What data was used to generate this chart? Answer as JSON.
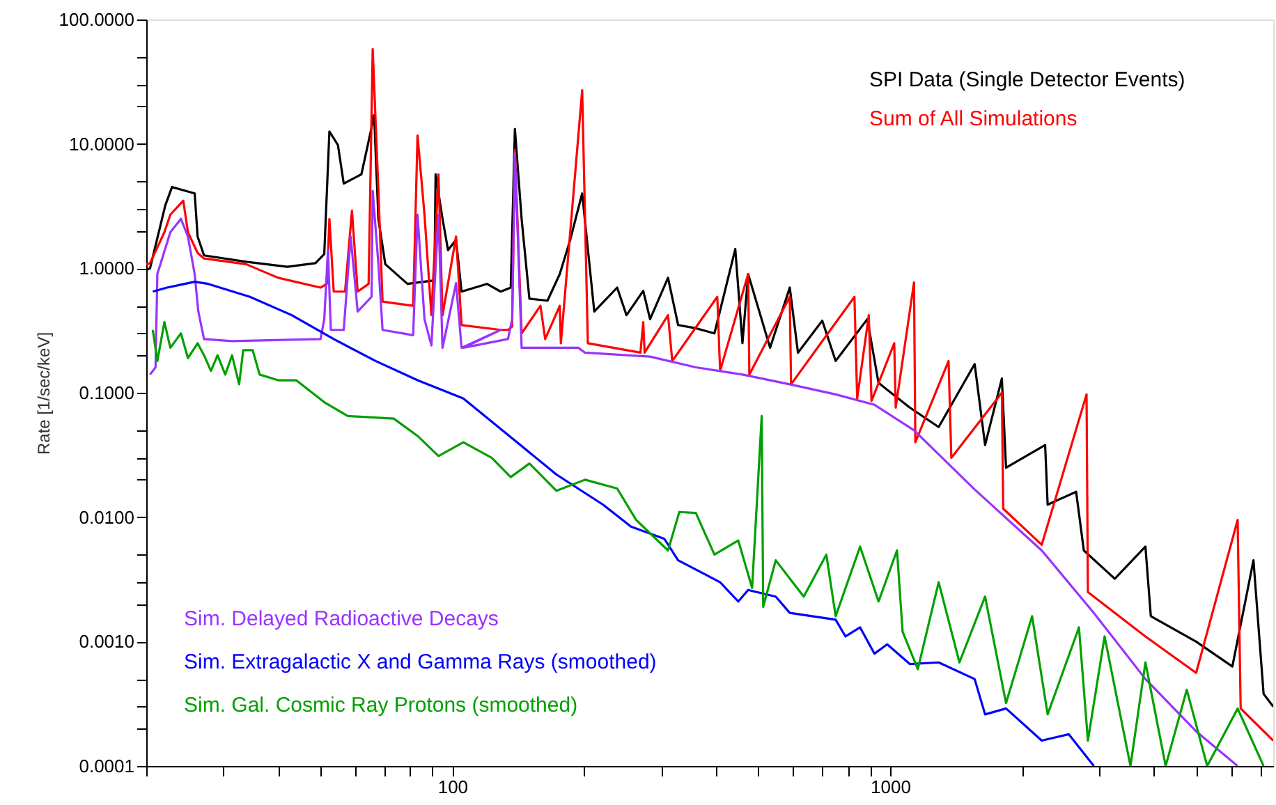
{
  "chart_data": {
    "type": "line",
    "ylabel": "Rate [1/sec/keV]",
    "log": "xy",
    "grid": false,
    "marker": "none",
    "line_style": "solid",
    "xlim": [
      20,
      7500
    ],
    "ylim": [
      0.0001,
      100
    ],
    "xticks": [
      {
        "value": 20,
        "label": null
      },
      {
        "value": 30,
        "label": null
      },
      {
        "value": 40,
        "label": null
      },
      {
        "value": 50,
        "label": null
      },
      {
        "value": 60,
        "label": null
      },
      {
        "value": 70,
        "label": null
      },
      {
        "value": 80,
        "label": null
      },
      {
        "value": 90,
        "label": null
      },
      100,
      {
        "value": 200,
        "label": null
      },
      {
        "value": 300,
        "label": null
      },
      {
        "value": 400,
        "label": null
      },
      {
        "value": 500,
        "label": null
      },
      {
        "value": 600,
        "label": null
      },
      {
        "value": 700,
        "label": null
      },
      {
        "value": 800,
        "label": null
      },
      {
        "value": 900,
        "label": null
      },
      1000,
      {
        "value": 2000,
        "label": null
      },
      {
        "value": 3000,
        "label": null
      },
      {
        "value": 4000,
        "label": null
      },
      {
        "value": 5000,
        "label": null
      },
      {
        "value": 6000,
        "label": null
      },
      {
        "value": 7000,
        "label": null
      }
    ],
    "yticks": [
      {
        "value": 0.0001,
        "label": "0.0001"
      },
      {
        "value": 0.0002,
        "label": null
      },
      {
        "value": 0.0003,
        "label": null
      },
      {
        "value": 0.0005,
        "label": null
      },
      {
        "value": 0.001,
        "label": "0.0010"
      },
      {
        "value": 0.002,
        "label": null
      },
      {
        "value": 0.003,
        "label": null
      },
      {
        "value": 0.005,
        "label": null
      },
      {
        "value": 0.01,
        "label": "0.0100"
      },
      {
        "value": 0.02,
        "label": null
      },
      {
        "value": 0.03,
        "label": null
      },
      {
        "value": 0.05,
        "label": null
      },
      {
        "value": 0.1,
        "label": "0.1000"
      },
      {
        "value": 0.2,
        "label": null
      },
      {
        "value": 0.3,
        "label": null
      },
      {
        "value": 0.5,
        "label": null
      },
      {
        "value": 1,
        "label": "1.0000"
      },
      {
        "value": 2,
        "label": null
      },
      {
        "value": 3,
        "label": null
      },
      {
        "value": 5,
        "label": null
      },
      {
        "value": 10,
        "label": "10.0000"
      },
      {
        "value": 20,
        "label": null
      },
      {
        "value": 30,
        "label": null
      },
      {
        "value": 50,
        "label": null
      },
      {
        "value": 100,
        "label": "100.0000"
      }
    ],
    "series": [
      {
        "name": "SPI Data (Single Detector Events)",
        "color": "#000000",
        "x": [
          20,
          20.4,
          22.1,
          22.9,
          25.8,
          26.2,
          27.1,
          33.8,
          42,
          48.7,
          51,
          52.4,
          54.8,
          56.5,
          62,
          64,
          66.3,
          67.8,
          70.3,
          79,
          91,
          91.6,
          95,
          97.8,
          102,
          105,
          120,
          129,
          136,
          139,
          144,
          150,
          165,
          176,
          186,
          198,
          211,
          238,
          250,
          273,
          283,
          311,
          328,
          360,
          397,
          443,
          460,
          474,
          532,
          590,
          616,
          700,
          751,
          887,
          941,
          1109,
          1291,
          1560,
          1648,
          1800,
          1840,
          2260,
          2290,
          2660,
          2770,
          3260,
          3830,
          3940,
          5000,
          6050,
          6760,
          7130,
          7500
        ],
        "values": [
          0.97,
          1.0,
          3.2,
          4.5,
          4,
          1.8,
          1.27,
          1.13,
          1.03,
          1.1,
          1.3,
          12.6,
          9.8,
          4.8,
          5.7,
          9.5,
          17,
          2.5,
          1.08,
          0.75,
          0.8,
          5.7,
          2.5,
          1.4,
          1.7,
          0.65,
          0.75,
          0.65,
          0.7,
          13.2,
          2.5,
          0.57,
          0.55,
          0.9,
          1.7,
          4,
          0.45,
          0.7,
          0.42,
          0.66,
          0.39,
          0.84,
          0.35,
          0.33,
          0.3,
          1.43,
          0.25,
          0.9,
          0.23,
          0.7,
          0.21,
          0.38,
          0.18,
          0.39,
          0.12,
          0.076,
          0.053,
          0.17,
          0.038,
          0.13,
          0.025,
          0.038,
          0.0126,
          0.016,
          0.0054,
          0.0032,
          0.0058,
          0.0016,
          0.001,
          0.00063,
          0.0045,
          0.00038,
          0.0003
        ]
      },
      {
        "name": "Sum of All Simulations",
        "color": "#ff0000",
        "x": [
          20,
          20.4,
          22,
          22.7,
          24.3,
          24.9,
          26.2,
          27.1,
          33.8,
          40,
          50,
          51.7,
          52.4,
          53.6,
          56.9,
          59,
          60.8,
          64.4,
          65.8,
          67.8,
          69.3,
          81.4,
          83.3,
          86.4,
          89.6,
          93,
          95,
          102,
          105,
          129,
          134,
          137,
          139,
          144,
          159,
          163,
          176,
          177,
          198,
          204,
          269,
          273,
          275,
          311,
          318,
          403,
          409,
          474,
          477,
          590,
          594,
          829,
          841,
          894,
          907,
          1022,
          1030,
          1134,
          1142,
          1360,
          1380,
          1800,
          1813,
          2220,
          2810,
          2830,
          3830,
          5000,
          6220,
          6320,
          7500
        ],
        "values": [
          1.08,
          1.1,
          1.95,
          2.7,
          3.5,
          1.95,
          1.33,
          1.2,
          1.08,
          0.84,
          0.7,
          0.75,
          2.5,
          0.65,
          0.65,
          2.9,
          0.65,
          0.75,
          58,
          4.2,
          0.54,
          0.5,
          11.7,
          2.7,
          0.42,
          5.7,
          0.42,
          1.8,
          0.35,
          0.32,
          0.32,
          0.34,
          9,
          0.3,
          0.5,
          0.27,
          0.5,
          0.25,
          27,
          0.25,
          0.21,
          0.37,
          0.21,
          0.42,
          0.18,
          0.59,
          0.15,
          0.9,
          0.14,
          0.59,
          0.117,
          0.59,
          0.09,
          0.42,
          0.086,
          0.25,
          0.076,
          0.77,
          0.04,
          0.18,
          0.03,
          0.1,
          0.0117,
          0.006,
          0.097,
          0.0025,
          0.0011,
          0.00056,
          0.0095,
          0.00029,
          0.00016
        ]
      },
      {
        "name": "Sim. Delayed Radioactive Decays",
        "color": "#9933ff",
        "x": [
          20.4,
          21,
          21.2,
          22.7,
          24,
          24.9,
          25.8,
          26.3,
          27.1,
          31.4,
          50,
          51,
          52,
          52.8,
          56.5,
          58.6,
          60.8,
          65.4,
          65.8,
          67.8,
          69.3,
          81.4,
          83.3,
          86.4,
          89.6,
          93,
          95,
          102,
          105,
          129,
          106,
          134,
          137,
          139,
          144,
          173,
          194,
          201,
          283,
          360,
          460,
          590,
          751,
          921,
          1134,
          1560,
          2220,
          2920,
          3830,
          5000,
          6220
        ],
        "values": [
          0.14,
          0.16,
          0.9,
          1.95,
          2.5,
          1.8,
          0.9,
          0.45,
          0.27,
          0.26,
          0.27,
          0.39,
          1.4,
          0.32,
          0.32,
          1.8,
          0.45,
          0.59,
          4.2,
          1.08,
          0.32,
          0.29,
          2.7,
          0.39,
          0.24,
          2.7,
          0.23,
          0.76,
          0.23,
          0.32,
          0.23,
          0.27,
          0.39,
          8.4,
          0.23,
          0.23,
          0.23,
          0.21,
          0.195,
          0.16,
          0.14,
          0.117,
          0.097,
          0.08,
          0.05,
          0.0167,
          0.0054,
          0.0017,
          0.0005,
          0.00019,
          0.0001
        ]
      },
      {
        "name": "Sim. Extragalactic X and Gamma Rays (smoothed)",
        "color": "#0000ff",
        "x": [
          20.7,
          22.3,
          25.8,
          27.7,
          34.5,
          43,
          53.6,
          66.8,
          83.3,
          106,
          136,
          173,
          221,
          256,
          305,
          328,
          409,
          450,
          474,
          548,
          590,
          751,
          791,
          854,
          921,
          985,
          1109,
          1291,
          1560,
          1648,
          1840,
          2220,
          2560,
          2920
        ],
        "values": [
          0.65,
          0.7,
          0.78,
          0.75,
          0.59,
          0.42,
          0.27,
          0.18,
          0.126,
          0.09,
          0.044,
          0.022,
          0.0126,
          0.0084,
          0.0067,
          0.0045,
          0.003,
          0.0021,
          0.0026,
          0.0023,
          0.0017,
          0.0015,
          0.0011,
          0.0013,
          0.0008,
          0.00095,
          0.00066,
          0.00068,
          0.0005,
          0.00026,
          0.00029,
          0.00016,
          0.00018,
          0.0001
        ]
      },
      {
        "name": "Sim. Gal. Cosmic Ray Protons (smoothed)",
        "color": "#00a000",
        "x": [
          20.7,
          21.2,
          22,
          22.7,
          24,
          24.9,
          26.2,
          27.1,
          28.1,
          29.1,
          30.3,
          31.4,
          32.6,
          33.3,
          35,
          36.3,
          40,
          44,
          51,
          57.7,
          73.5,
          83.3,
          93,
          106,
          123,
          136,
          150,
          173,
          201,
          238,
          263,
          311,
          330,
          360,
          397,
          450,
          484,
          509,
          513,
          548,
          635,
          715,
          751,
          854,
          941,
          1037,
          1068,
          1157,
          1291,
          1440,
          1648,
          1840,
          2110,
          2290,
          2700,
          2830,
          3090,
          3540,
          3830,
          4260,
          4760,
          5300,
          6220,
          7130
        ],
        "values": [
          0.32,
          0.18,
          0.37,
          0.23,
          0.3,
          0.19,
          0.25,
          0.2,
          0.15,
          0.2,
          0.14,
          0.2,
          0.117,
          0.22,
          0.22,
          0.14,
          0.126,
          0.126,
          0.084,
          0.065,
          0.062,
          0.045,
          0.031,
          0.04,
          0.03,
          0.021,
          0.027,
          0.0163,
          0.02,
          0.017,
          0.0095,
          0.0054,
          0.011,
          0.0108,
          0.005,
          0.0065,
          0.0027,
          0.065,
          0.0019,
          0.0045,
          0.0023,
          0.005,
          0.0016,
          0.0058,
          0.0021,
          0.0054,
          0.0012,
          0.0006,
          0.003,
          0.00068,
          0.0023,
          0.00032,
          0.0016,
          0.00026,
          0.0013,
          0.00016,
          0.0011,
          0.0001,
          0.00068,
          0.0001,
          0.00041,
          0.0001,
          0.00029,
          0.0001
        ]
      }
    ]
  }
}
